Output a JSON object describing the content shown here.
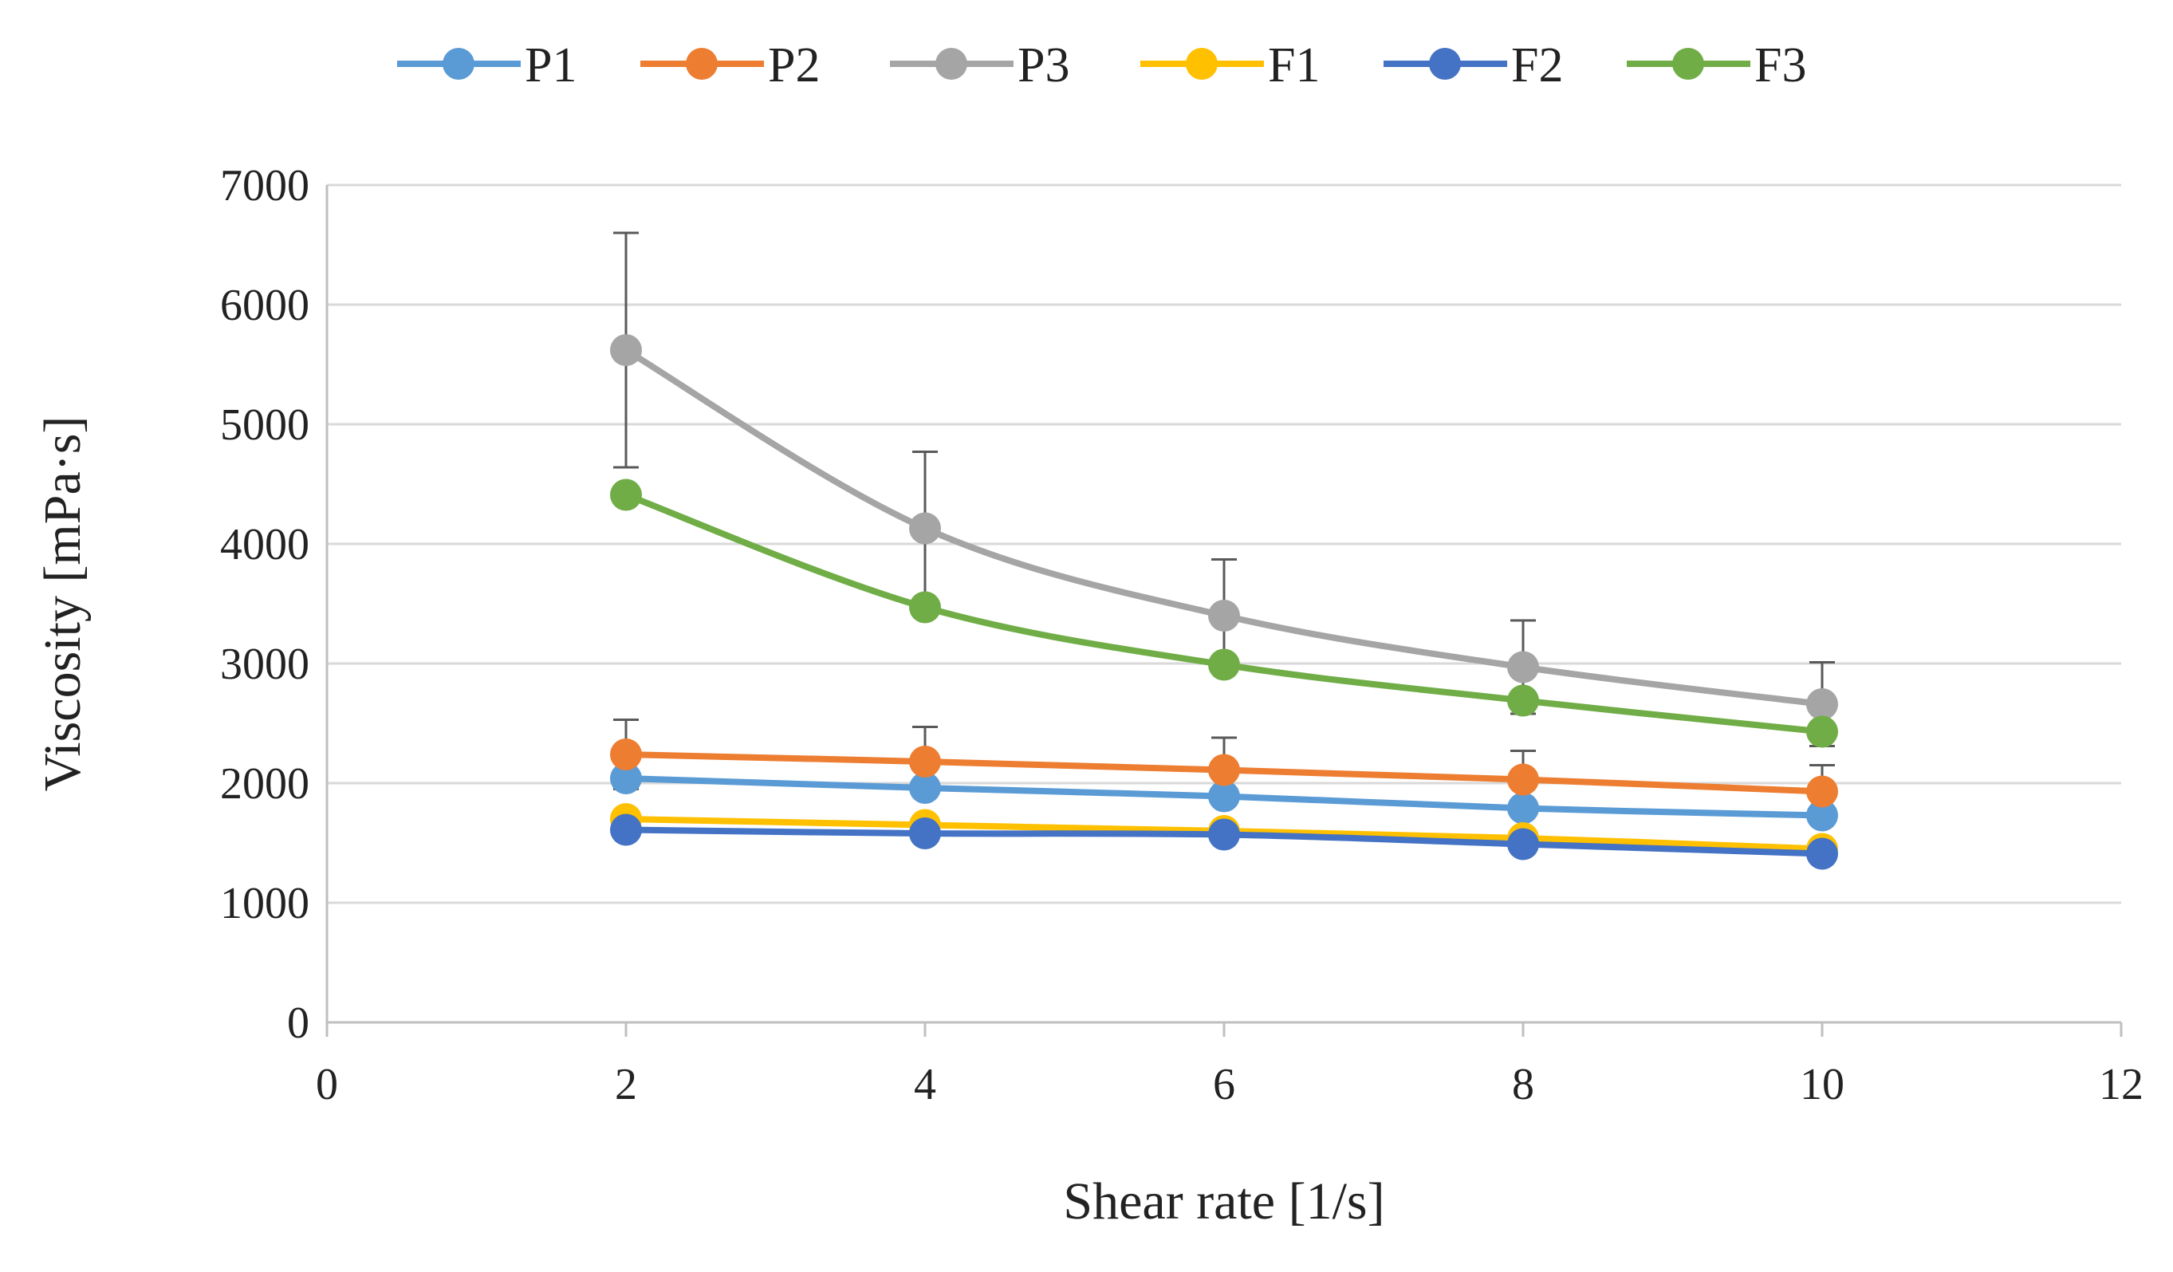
{
  "chart_data": {
    "type": "line",
    "title": "",
    "xlabel": "Shear rate [1/s]",
    "ylabel": "Viscosity [mPa·s]",
    "xlim": [
      0,
      12
    ],
    "ylim": [
      0,
      7000
    ],
    "xticks": [
      0,
      2,
      4,
      6,
      8,
      10,
      12
    ],
    "yticks": [
      0,
      1000,
      2000,
      3000,
      4000,
      5000,
      6000,
      7000
    ],
    "grid": "horizontal",
    "legend_position": "top",
    "x": [
      2,
      4,
      6,
      8,
      10
    ],
    "series": [
      {
        "name": "P1",
        "color": "#5B9BD5",
        "values": [
          2040,
          1960,
          1890,
          1790,
          1730
        ],
        "error": [
          0,
          0,
          0,
          0,
          0
        ]
      },
      {
        "name": "P2",
        "color": "#ED7D31",
        "values": [
          2240,
          2180,
          2110,
          2030,
          1930
        ],
        "error": [
          290,
          290,
          270,
          240,
          220
        ]
      },
      {
        "name": "P3",
        "color": "#A5A5A5",
        "values": [
          5620,
          4130,
          3400,
          2970,
          2660
        ],
        "error": [
          980,
          640,
          470,
          390,
          350
        ]
      },
      {
        "name": "F1",
        "color": "#FFC000",
        "values": [
          1700,
          1650,
          1600,
          1540,
          1450
        ],
        "error": [
          0,
          0,
          0,
          0,
          0
        ]
      },
      {
        "name": "F2",
        "color": "#4472C4",
        "values": [
          1610,
          1580,
          1570,
          1490,
          1410
        ],
        "error": [
          0,
          0,
          0,
          0,
          0
        ]
      },
      {
        "name": "F3",
        "color": "#70AD47",
        "values": [
          4410,
          3470,
          2990,
          2690,
          2430
        ],
        "error": [
          0,
          0,
          0,
          0,
          0
        ]
      }
    ]
  }
}
